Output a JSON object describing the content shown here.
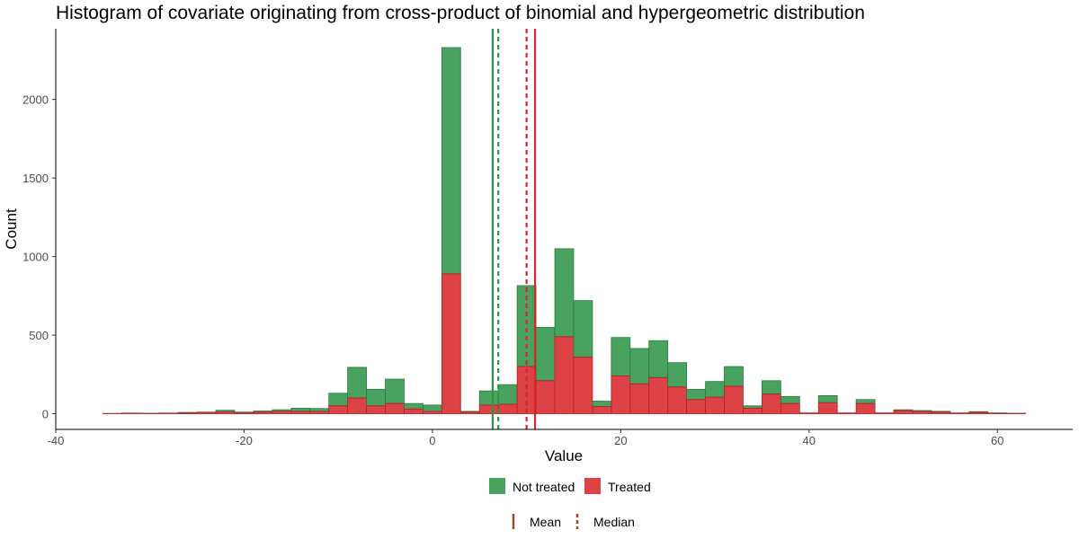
{
  "chart_data": {
    "type": "bar",
    "title": "Histogram of covariate originating from cross-product of binomial and hypergeometric distribution",
    "xlabel": "Value",
    "ylabel": "Count",
    "xlim": [
      -40,
      68
    ],
    "ylim": [
      -100,
      2450
    ],
    "xticks": [
      -40,
      -20,
      0,
      20,
      40,
      60
    ],
    "yticks": [
      0,
      500,
      1000,
      1500,
      2000
    ],
    "stacked": true,
    "bin_width": 2,
    "x": [
      -34,
      -32,
      -30,
      -28,
      -26,
      -24,
      -22,
      -20,
      -18,
      -16,
      -14,
      -12,
      -10,
      -8,
      -6,
      -4,
      -2,
      0,
      2,
      4,
      6,
      8,
      10,
      12,
      14,
      16,
      18,
      20,
      22,
      24,
      26,
      28,
      30,
      32,
      34,
      36,
      38,
      40,
      42,
      44,
      46,
      48,
      50,
      52,
      54,
      56,
      58,
      60,
      62
    ],
    "series": [
      {
        "name": "Treated",
        "color": "#D7262B",
        "values": [
          2,
          3,
          2,
          3,
          5,
          8,
          12,
          5,
          10,
          15,
          15,
          15,
          50,
          100,
          50,
          65,
          30,
          15,
          890,
          10,
          55,
          60,
          300,
          210,
          490,
          360,
          45,
          240,
          190,
          230,
          170,
          90,
          105,
          175,
          35,
          125,
          65,
          5,
          70,
          5,
          65,
          5,
          20,
          15,
          10,
          5,
          8,
          3,
          2
        ]
      },
      {
        "name": "Not treated",
        "color": "#2E9448",
        "values": [
          0,
          1,
          1,
          1,
          3,
          2,
          10,
          5,
          7,
          10,
          20,
          18,
          80,
          195,
          105,
          155,
          35,
          40,
          1440,
          5,
          90,
          125,
          515,
          340,
          560,
          360,
          35,
          245,
          225,
          235,
          155,
          65,
          100,
          125,
          15,
          85,
          45,
          0,
          45,
          0,
          25,
          0,
          5,
          5,
          5,
          0,
          5,
          2,
          1
        ]
      }
    ],
    "reference_lines": [
      {
        "series": "Not treated",
        "stat": "Mean",
        "x": 6.4,
        "color": "#2E9448",
        "style": "solid"
      },
      {
        "series": "Not treated",
        "stat": "Median",
        "x": 7,
        "color": "#2E9448",
        "style": "dashed"
      },
      {
        "series": "Treated",
        "stat": "Median",
        "x": 10,
        "color": "#D7262B",
        "style": "dashed"
      },
      {
        "series": "Treated",
        "stat": "Mean",
        "x": 10.9,
        "color": "#D7262B",
        "style": "solid"
      }
    ],
    "legend_fill": {
      "placement": "bottom",
      "items": [
        {
          "label": "Not treated",
          "color": "#2E9448"
        },
        {
          "label": "Treated",
          "color": "#D7262B"
        }
      ]
    },
    "legend_lines": {
      "placement": "bottom",
      "items": [
        {
          "label": "Mean",
          "style": "solid",
          "color": "#A0452E"
        },
        {
          "label": "Median",
          "style": "dashed",
          "color": "#A0452E"
        }
      ]
    },
    "grid": false
  }
}
